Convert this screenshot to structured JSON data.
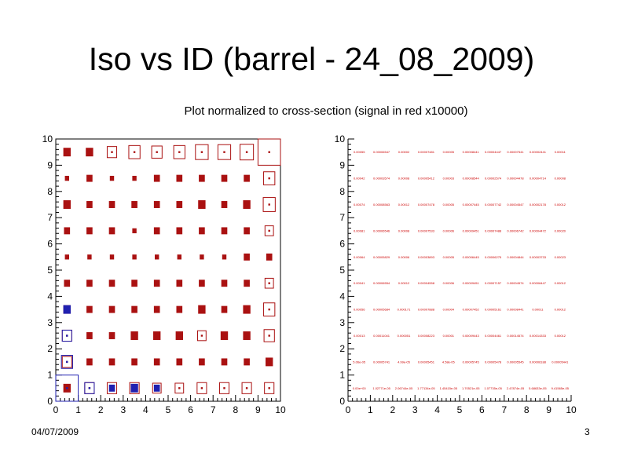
{
  "title": "Iso vs ID (barrel - 24_08_2009)",
  "subtitle": "Plot normalized to cross-section (signal in red x10000)",
  "footer": {
    "date": "04/07/2009",
    "page": "3"
  },
  "colors": {
    "signal": "#cc0000",
    "background": "#2020b0",
    "box": "#aa1111"
  },
  "chart_data": [
    {
      "type": "heatmap",
      "subtype": "box",
      "xlim": [
        0,
        10
      ],
      "ylim": [
        0,
        10
      ],
      "x_ticks": [
        "0",
        "1",
        "2",
        "3",
        "4",
        "5",
        "6",
        "7",
        "8",
        "9",
        "10"
      ],
      "y_ticks": [
        "0",
        "1",
        "2",
        "3",
        "4",
        "5",
        "6",
        "7",
        "8",
        "9",
        "10"
      ],
      "series": [
        {
          "role": "signal",
          "cells": [
            [
              0.5,
              0.5,
              3
            ],
            [
              1.5,
              0.5,
              5
            ],
            [
              2.5,
              0.5,
              5
            ],
            [
              3.5,
              0.5,
              5
            ],
            [
              4.5,
              0.5,
              4
            ],
            [
              5.5,
              0.5,
              4
            ],
            [
              6.5,
              0.5,
              5
            ],
            [
              7.5,
              0.5,
              5
            ],
            [
              8.5,
              0.5,
              5
            ],
            [
              9.5,
              0.5,
              5
            ],
            [
              0.5,
              1.5,
              5
            ],
            [
              1.5,
              1.5,
              2
            ],
            [
              2.5,
              1.5,
              2
            ],
            [
              3.5,
              1.5,
              2
            ],
            [
              4.5,
              1.5,
              2
            ],
            [
              5.5,
              1.5,
              2
            ],
            [
              6.5,
              1.5,
              2
            ],
            [
              7.5,
              1.5,
              2
            ],
            [
              8.5,
              1.5,
              2
            ],
            [
              9.5,
              1.5,
              3
            ],
            [
              0.5,
              2.5,
              5
            ],
            [
              1.5,
              2.5,
              2
            ],
            [
              2.5,
              2.5,
              2
            ],
            [
              3.5,
              2.5,
              3
            ],
            [
              4.5,
              2.5,
              3
            ],
            [
              5.5,
              2.5,
              3
            ],
            [
              6.5,
              2.5,
              4
            ],
            [
              7.5,
              2.5,
              3
            ],
            [
              8.5,
              2.5,
              3
            ],
            [
              9.5,
              2.5,
              6
            ],
            [
              0.5,
              3.5,
              3
            ],
            [
              1.5,
              3.5,
              2
            ],
            [
              2.5,
              3.5,
              2
            ],
            [
              3.5,
              3.5,
              2
            ],
            [
              4.5,
              3.5,
              2
            ],
            [
              5.5,
              3.5,
              2
            ],
            [
              6.5,
              3.5,
              3
            ],
            [
              7.5,
              3.5,
              2
            ],
            [
              8.5,
              3.5,
              3
            ],
            [
              9.5,
              3.5,
              7
            ],
            [
              0.5,
              4.5,
              2
            ],
            [
              1.5,
              4.5,
              2
            ],
            [
              2.5,
              4.5,
              2
            ],
            [
              3.5,
              4.5,
              2
            ],
            [
              4.5,
              4.5,
              2
            ],
            [
              5.5,
              4.5,
              2
            ],
            [
              6.5,
              4.5,
              2
            ],
            [
              7.5,
              4.5,
              2
            ],
            [
              8.5,
              4.5,
              2
            ],
            [
              9.5,
              4.5,
              4
            ],
            [
              0.5,
              5.5,
              1
            ],
            [
              1.5,
              5.5,
              1
            ],
            [
              2.5,
              5.5,
              1
            ],
            [
              3.5,
              5.5,
              1
            ],
            [
              4.5,
              5.5,
              1
            ],
            [
              5.5,
              5.5,
              1
            ],
            [
              6.5,
              5.5,
              1
            ],
            [
              7.5,
              5.5,
              1
            ],
            [
              8.5,
              5.5,
              2
            ],
            [
              9.5,
              5.5,
              2
            ],
            [
              0.5,
              6.5,
              2
            ],
            [
              1.5,
              6.5,
              2
            ],
            [
              2.5,
              6.5,
              2
            ],
            [
              3.5,
              6.5,
              1
            ],
            [
              4.5,
              6.5,
              2
            ],
            [
              5.5,
              6.5,
              2
            ],
            [
              6.5,
              6.5,
              2
            ],
            [
              7.5,
              6.5,
              2
            ],
            [
              8.5,
              6.5,
              2
            ],
            [
              9.5,
              6.5,
              4
            ],
            [
              0.5,
              7.5,
              3
            ],
            [
              1.5,
              7.5,
              2
            ],
            [
              2.5,
              7.5,
              2
            ],
            [
              3.5,
              7.5,
              2
            ],
            [
              4.5,
              7.5,
              2
            ],
            [
              5.5,
              7.5,
              2
            ],
            [
              6.5,
              7.5,
              3
            ],
            [
              7.5,
              7.5,
              2
            ],
            [
              8.5,
              7.5,
              3
            ],
            [
              9.5,
              7.5,
              8
            ],
            [
              0.5,
              8.5,
              1
            ],
            [
              1.5,
              8.5,
              2
            ],
            [
              2.5,
              8.5,
              1
            ],
            [
              3.5,
              8.5,
              1
            ],
            [
              4.5,
              8.5,
              2
            ],
            [
              5.5,
              8.5,
              2
            ],
            [
              6.5,
              8.5,
              2
            ],
            [
              7.5,
              8.5,
              2
            ],
            [
              8.5,
              8.5,
              2
            ],
            [
              9.5,
              8.5,
              7
            ],
            [
              0.5,
              9.5,
              3
            ],
            [
              1.5,
              9.5,
              3
            ],
            [
              2.5,
              9.5,
              5
            ],
            [
              3.5,
              9.5,
              7
            ],
            [
              4.5,
              9.5,
              6
            ],
            [
              5.5,
              9.5,
              7
            ],
            [
              6.5,
              9.5,
              9
            ],
            [
              7.5,
              9.5,
              9
            ],
            [
              8.5,
              9.5,
              10
            ],
            [
              9.5,
              9.5,
              28
            ]
          ]
        },
        {
          "role": "background",
          "cells": [
            [
              0.5,
              0.5,
              28
            ],
            [
              0.5,
              1.5,
              7
            ],
            [
              0.5,
              2.5,
              5
            ],
            [
              0.5,
              3.5,
              3
            ],
            [
              1.5,
              0.5,
              5
            ],
            [
              2.5,
              0.5,
              2
            ],
            [
              3.5,
              0.5,
              3
            ],
            [
              4.5,
              0.5,
              2
            ]
          ]
        }
      ]
    },
    {
      "type": "table",
      "subtype": "text grid",
      "xlim": [
        0,
        10
      ],
      "ylim": [
        0,
        10
      ],
      "x_ticks": [
        "0",
        "1",
        "2",
        "3",
        "4",
        "5",
        "6",
        "7",
        "8",
        "9",
        "10"
      ],
      "y_ticks": [
        "0",
        "1",
        "2",
        "3",
        "4",
        "5",
        "6",
        "7",
        "8",
        "9",
        "10"
      ],
      "rows": [
        [
          "0.00e+00",
          "1.02771e-05",
          "2.06744e-05",
          "1.77134e-05",
          "1.45415e-05",
          "1.70521e-05",
          "1.07735e-05",
          "2.47874e-05",
          "5.68633e-05",
          "9.41565e-05"
        ],
        [
          "5.06e-05",
          "0.00005741",
          "4.99e-05",
          "0.00005451",
          "4.58e-05",
          "0.00005745",
          "0.00005478",
          "0.00005545",
          "0.00006188",
          "0.00005441"
        ],
        [
          "0.00013",
          "0.00011041",
          "0.000051",
          "0.00008223",
          "0.00001",
          "0.00009443",
          "0.00004461",
          "0.00014574",
          "0.00014333",
          "0.00012"
        ],
        [
          "0.00056",
          "0.00005684",
          "0.000171",
          "0.00007888",
          "0.00004",
          "0.00007452",
          "0.00005161",
          "0.00008441",
          "0.00011",
          "0.00012"
        ],
        [
          "0.00041",
          "0.00006554",
          "0.00012",
          "0.00004558",
          "0.00006",
          "0.00009451",
          "0.00007157",
          "0.00004574",
          "0.00006447",
          "0.00012"
        ],
        [
          "0.00064",
          "0.00005829",
          "0.00006",
          "0.00003893",
          "0.00005",
          "0.00006445",
          "0.00006275",
          "0.00004844",
          "0.00003733",
          "0.00023"
        ],
        [
          "0.00081",
          "0.00006546",
          "0.00008",
          "0.00007533",
          "0.00006",
          "0.00009451",
          "0.00007488",
          "0.00006742",
          "0.00004472",
          "0.00020"
        ],
        [
          "0.00074",
          "0.00008563",
          "0.00012",
          "0.00007478",
          "0.00005",
          "0.00007445",
          "0.00007742",
          "0.00004547",
          "0.00002178",
          "0.00012"
        ],
        [
          "0.00042",
          "0.00003574",
          "0.00008",
          "0.00005412",
          "0.00003",
          "0.00008544",
          "0.00002574",
          "0.00004478",
          "0.00004714",
          "0.00008"
        ],
        [
          "0.00055",
          "0.00006547",
          "0.00002",
          "0.00007481",
          "0.00005",
          "0.00008441",
          "0.00004447",
          "0.00007541",
          "0.00002441",
          "0.00011"
        ]
      ]
    }
  ]
}
